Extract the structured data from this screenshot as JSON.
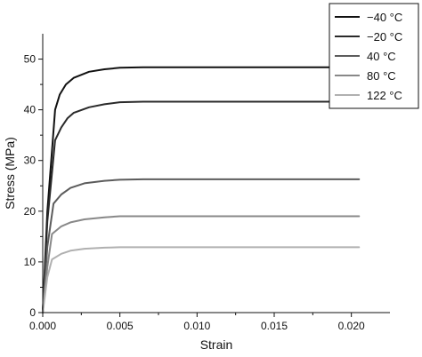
{
  "chart_data": {
    "type": "line",
    "xlabel": "Strain",
    "ylabel": "Stress (MPa)",
    "xlim": [
      0.0,
      0.0225
    ],
    "ylim": [
      0,
      55
    ],
    "x_ticks": [
      "0.000",
      "0.005",
      "0.010",
      "0.015",
      "0.020"
    ],
    "y_ticks": [
      "0",
      "10",
      "20",
      "30",
      "40",
      "50"
    ],
    "legend_position": "top-right",
    "grid": false,
    "series": [
      {
        "name": "−40 °C",
        "color": "#111111",
        "x": [
          0,
          0.0003,
          0.0008,
          0.0011,
          0.0015,
          0.002,
          0.003,
          0.004,
          0.005,
          0.0065,
          0.01,
          0.015,
          0.0205
        ],
        "y": [
          0,
          20,
          40,
          43,
          45,
          46.3,
          47.5,
          48.0,
          48.3,
          48.4,
          48.4,
          48.4,
          48.4
        ]
      },
      {
        "name": "−20 °C",
        "color": "#2a2a2a",
        "x": [
          0,
          0.0003,
          0.0008,
          0.0012,
          0.0016,
          0.002,
          0.003,
          0.004,
          0.005,
          0.0065,
          0.01,
          0.015,
          0.0205
        ],
        "y": [
          0,
          18,
          34,
          36.5,
          38.3,
          39.4,
          40.5,
          41.1,
          41.5,
          41.6,
          41.6,
          41.6,
          41.6
        ]
      },
      {
        "name": "40 °C",
        "color": "#5c5c5c",
        "x": [
          0,
          0.0003,
          0.0007,
          0.0012,
          0.0018,
          0.0027,
          0.004,
          0.005,
          0.0065,
          0.01,
          0.015,
          0.0205
        ],
        "y": [
          0,
          13,
          21.5,
          23.3,
          24.6,
          25.5,
          26.0,
          26.2,
          26.3,
          26.3,
          26.3,
          26.3
        ]
      },
      {
        "name": "80 °C",
        "color": "#888888",
        "x": [
          0,
          0.0003,
          0.0006,
          0.0012,
          0.0018,
          0.0027,
          0.004,
          0.005,
          0.0065,
          0.01,
          0.015,
          0.0205
        ],
        "y": [
          0,
          9,
          15.5,
          17.0,
          17.8,
          18.4,
          18.8,
          19.0,
          19.0,
          19.0,
          19.0,
          19.0
        ]
      },
      {
        "name": "122 °C",
        "color": "#b0b0b0",
        "x": [
          0,
          0.0003,
          0.0006,
          0.0012,
          0.0018,
          0.0027,
          0.004,
          0.005,
          0.0065,
          0.01,
          0.015,
          0.0205
        ],
        "y": [
          0,
          7,
          10.5,
          11.6,
          12.2,
          12.6,
          12.8,
          12.9,
          12.9,
          12.9,
          12.9,
          12.9
        ]
      }
    ]
  }
}
